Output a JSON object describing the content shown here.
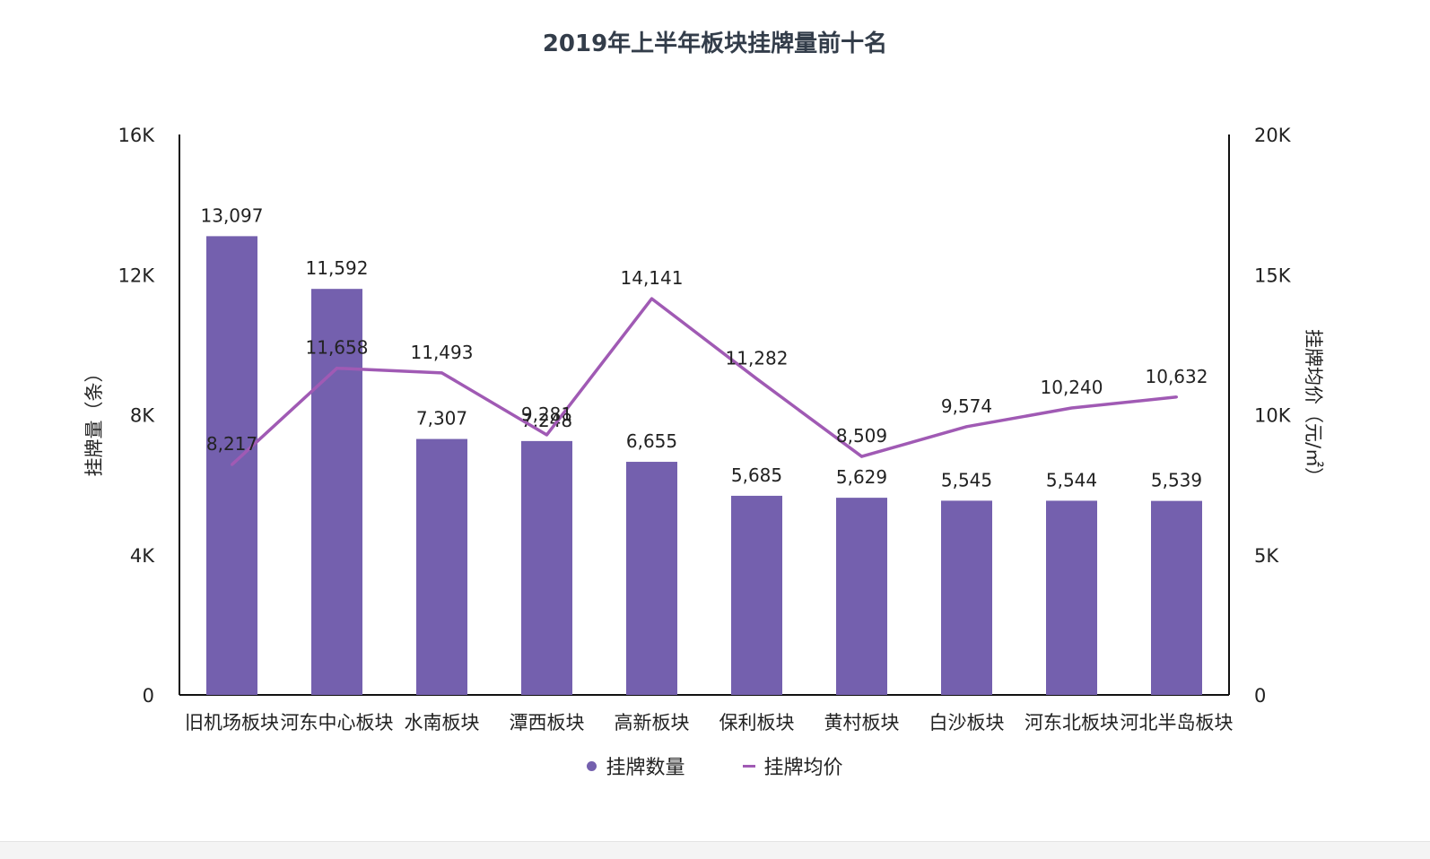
{
  "chart_data": {
    "type": "bar",
    "title": "2019年上半年板块挂牌量前十名",
    "categories": [
      "旧机场板块",
      "河东中心板块",
      "水南板块",
      "潭西板块",
      "高新板块",
      "保利板块",
      "黄村板块",
      "白沙板块",
      "河东北板块",
      "河北半岛板块"
    ],
    "series": [
      {
        "name": "挂牌数量",
        "type": "bar",
        "axis": "left",
        "values": [
          13097,
          11592,
          7307,
          7248,
          6655,
          5685,
          5629,
          5545,
          5544,
          5539
        ],
        "labels": [
          "13,097",
          "11,592",
          "7,307",
          "7,248",
          "6,655",
          "5,685",
          "5,629",
          "5,545",
          "5,544",
          "5,539"
        ],
        "color": "#7460ae"
      },
      {
        "name": "挂牌均价",
        "type": "line",
        "axis": "right",
        "values": [
          8217,
          11658,
          11493,
          9281,
          14141,
          11282,
          8509,
          9574,
          10240,
          10632
        ],
        "labels": [
          "8,217",
          "11,658",
          "11,493",
          "9,281",
          "14,141",
          "11,282",
          "8,509",
          "9,574",
          "10,240",
          "10,632"
        ],
        "color": "#a05ab4"
      }
    ],
    "ylabel": "挂牌量（条）",
    "y2label": "挂牌均价（元/㎡）",
    "ylim": [
      0,
      16000
    ],
    "y2lim": [
      0,
      20000
    ],
    "yticks": [
      "0",
      "4K",
      "8K",
      "12K",
      "16K"
    ],
    "y2ticks": [
      "0",
      "5K",
      "10K",
      "15K",
      "20K"
    ],
    "legend_position": "bottom",
    "grid": false
  }
}
